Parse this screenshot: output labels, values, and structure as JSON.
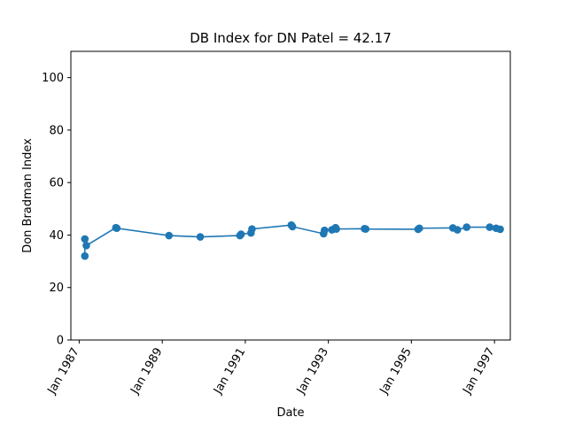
{
  "chart_data": {
    "type": "line",
    "title": "DB Index for DN Patel = 42.17",
    "xlabel": "Date",
    "ylabel": "Don Bradman Index",
    "ylim": [
      0,
      110
    ],
    "xlim": [
      "1986-10-20",
      "1997-05-20"
    ],
    "yticks": [
      0,
      20,
      40,
      60,
      80,
      100
    ],
    "xticks": [
      {
        "date": "1987-01-01",
        "label": "Jan 1987"
      },
      {
        "date": "1989-01-01",
        "label": "Jan 1989"
      },
      {
        "date": "1991-01-01",
        "label": "Jan 1991"
      },
      {
        "date": "1993-01-01",
        "label": "Jan 1993"
      },
      {
        "date": "1995-01-01",
        "label": "Jan 1995"
      },
      {
        "date": "1997-01-01",
        "label": "Jan 1997"
      }
    ],
    "grid": false,
    "series": [
      {
        "color": "#1f77b4",
        "marker": "circle",
        "points": [
          {
            "x": "1987-02-20",
            "y": 32.0
          },
          {
            "x": "1987-02-20",
            "y": 38.5
          },
          {
            "x": "1987-03-05",
            "y": 36.0
          },
          {
            "x": "1987-11-20",
            "y": 42.8
          },
          {
            "x": "1987-11-28",
            "y": 42.6
          },
          {
            "x": "1989-03-01",
            "y": 39.8
          },
          {
            "x": "1989-12-01",
            "y": 39.3
          },
          {
            "x": "1990-11-15",
            "y": 39.8
          },
          {
            "x": "1990-11-25",
            "y": 40.3
          },
          {
            "x": "1991-02-20",
            "y": 40.8
          },
          {
            "x": "1991-03-01",
            "y": 42.3
          },
          {
            "x": "1992-02-10",
            "y": 43.8
          },
          {
            "x": "1992-02-20",
            "y": 43.2
          },
          {
            "x": "1992-11-20",
            "y": 40.5
          },
          {
            "x": "1992-11-28",
            "y": 41.8
          },
          {
            "x": "1993-02-01",
            "y": 42.0
          },
          {
            "x": "1993-03-05",
            "y": 42.8
          },
          {
            "x": "1993-03-12",
            "y": 42.3
          },
          {
            "x": "1993-11-15",
            "y": 42.4
          },
          {
            "x": "1993-11-25",
            "y": 42.3
          },
          {
            "x": "1995-03-01",
            "y": 42.2
          },
          {
            "x": "1995-03-12",
            "y": 42.6
          },
          {
            "x": "1996-01-01",
            "y": 42.7
          },
          {
            "x": "1996-02-10",
            "y": 42.0
          },
          {
            "x": "1996-05-01",
            "y": 43.0
          },
          {
            "x": "1996-11-20",
            "y": 43.0
          },
          {
            "x": "1997-01-15",
            "y": 42.6
          },
          {
            "x": "1997-02-20",
            "y": 42.2
          }
        ]
      }
    ]
  }
}
